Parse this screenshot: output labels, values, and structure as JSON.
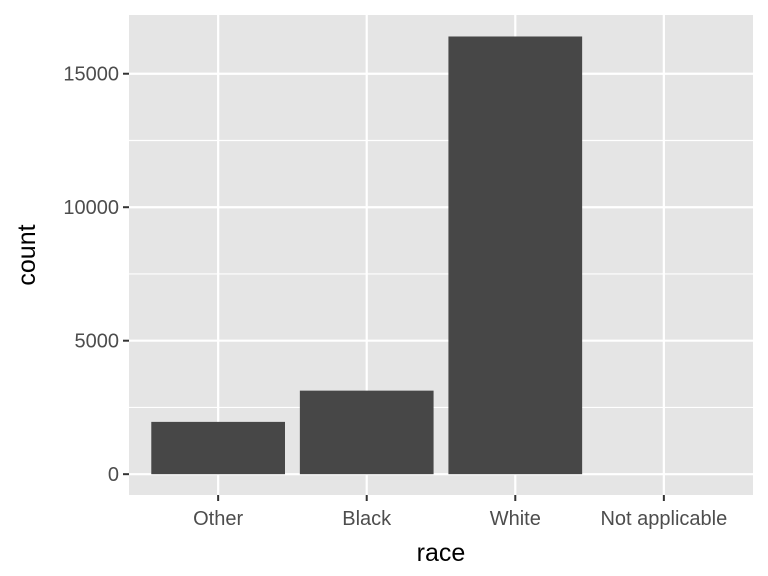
{
  "chart_data": {
    "type": "bar",
    "title": "",
    "xlabel": "race",
    "ylabel": "count",
    "categories": [
      "Other",
      "Black",
      "White",
      "Not applicable"
    ],
    "values": [
      1959,
      3129,
      16395,
      0
    ],
    "ylim": [
      -780,
      17200
    ],
    "yticks": [
      0,
      5000,
      10000,
      15000
    ],
    "ytick_labels": [
      "0",
      "5000",
      "10000",
      "15000"
    ],
    "grid": true,
    "legend": "none",
    "colors": {
      "panel": "#e5e5e5",
      "grid": "#ffffff",
      "bar": "#474747",
      "tick_text": "#4d4d4d",
      "tick_mark": "#333333"
    }
  }
}
